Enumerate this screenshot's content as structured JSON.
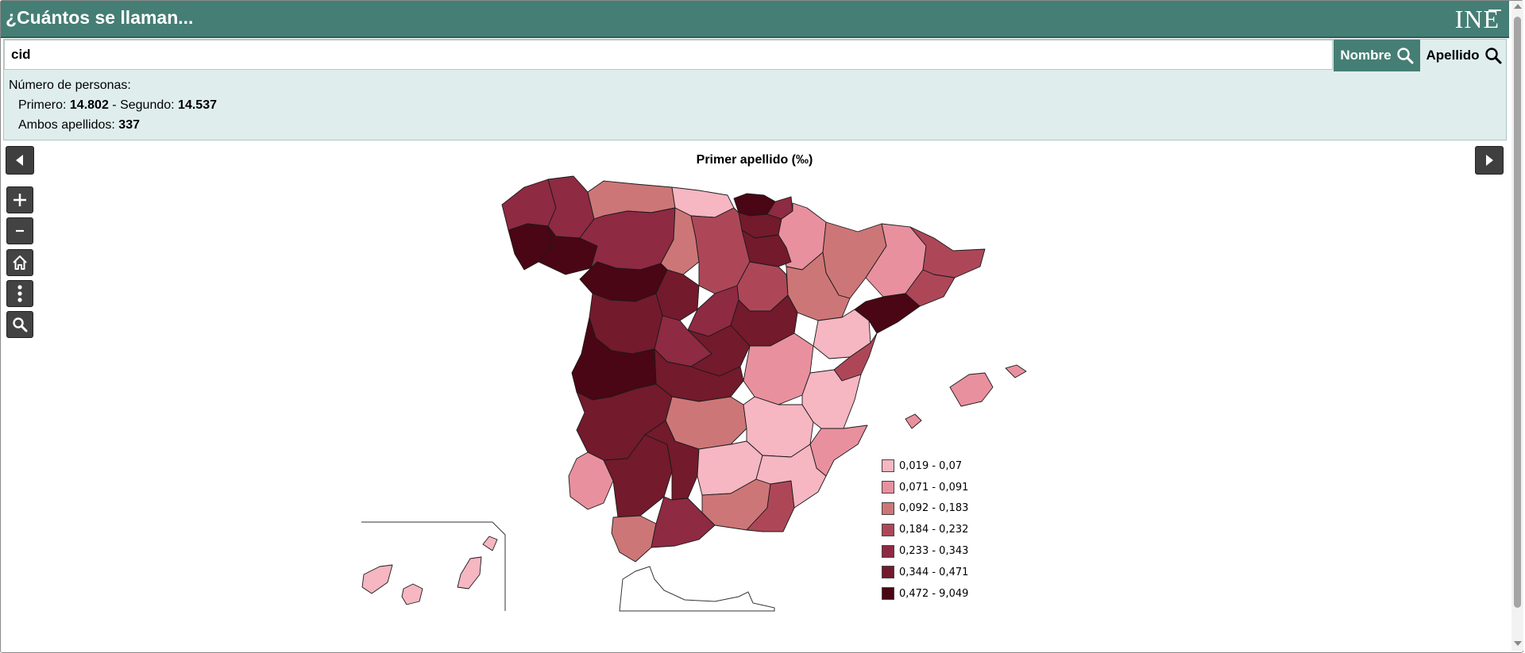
{
  "app": {
    "title": "¿Cuántos se llaman...",
    "logo_text": "INE"
  },
  "search": {
    "value": "cid",
    "nombre_label": "Nombre",
    "apellido_label": "Apellido"
  },
  "stats": {
    "heading": "Número de personas:",
    "primero_label": "Primero:",
    "primero_value": "14.802",
    "separator": "-",
    "segundo_label": "Segundo:",
    "segundo_value": "14.537",
    "ambos_label": "Ambos apellidos:",
    "ambos_value": "337"
  },
  "map": {
    "title": "Primer apellido (‰)",
    "legend": [
      {
        "label": "0,019 - 0,07",
        "color": "#f6b6c2"
      },
      {
        "label": "0,071 - 0,091",
        "color": "#e9909e"
      },
      {
        "label": "0,092 - 0,183",
        "color": "#cd7677"
      },
      {
        "label": "0,184 - 0,232",
        "color": "#ad4758"
      },
      {
        "label": "0,233 - 0,343",
        "color": "#8e2a42"
      },
      {
        "label": "0,344 - 0,471",
        "color": "#731a2c"
      },
      {
        "label": "0,472 - 9,049",
        "color": "#4a0614"
      }
    ]
  },
  "colors": {
    "header_bg": "#457e75",
    "panel_bg": "#dfeeed",
    "tool_bg": "#434343"
  },
  "icons": [
    "search-icon",
    "arrow-left-icon",
    "arrow-right-icon",
    "zoom-in-icon",
    "zoom-out-icon",
    "home-icon",
    "more-options-icon",
    "search-icon"
  ]
}
